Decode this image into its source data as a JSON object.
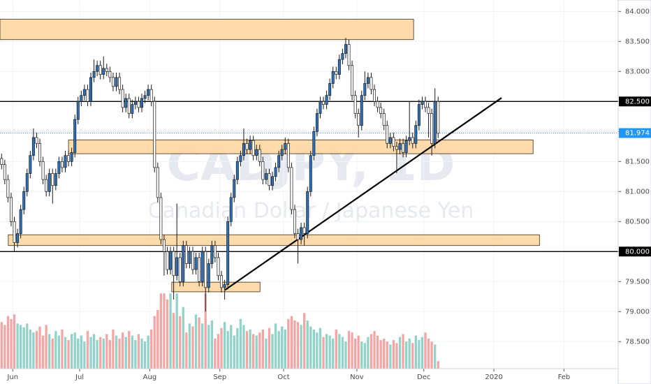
{
  "chart_data": {
    "type": "candlestick",
    "watermark_symbol": "CADJPY, 1D",
    "watermark_name": "Canadian Dollar / Japanese Yen",
    "up_color": "#2a72c0",
    "down_color": "#ffffff",
    "wick_color": "#1a1a1a",
    "volume_up_color": "#8fd3c9",
    "volume_down_color": "#f6a5a5",
    "zone_color": "#ffd59e",
    "grid": true,
    "grid_color": "#f0f3fa",
    "xlim": [
      0,
      194
    ],
    "xticks": [
      {
        "value": 4,
        "label": "Jun"
      },
      {
        "value": 25,
        "label": "Jul"
      },
      {
        "value": 47,
        "label": "Aug"
      },
      {
        "value": 69,
        "label": "Sep"
      },
      {
        "value": 89,
        "label": "Oct"
      },
      {
        "value": 112,
        "label": "Nov"
      },
      {
        "value": 133,
        "label": "Dec"
      },
      {
        "value": 155,
        "label": "2020"
      },
      {
        "value": 177,
        "label": "Feb"
      }
    ],
    "ylim": [
      78.05,
      84.19
    ],
    "yticks": [
      {
        "value": 78.5,
        "label": "78.500"
      },
      {
        "value": 79,
        "label": "79.000"
      },
      {
        "value": 79.5,
        "label": "79.500"
      },
      {
        "value": 80,
        "label": "80.000"
      },
      {
        "value": 80.5,
        "label": "80.500"
      },
      {
        "value": 81,
        "label": "81.000"
      },
      {
        "value": 81.5,
        "label": "81.500"
      },
      {
        "value": 82,
        "label": "82.000"
      },
      {
        "value": 82.5,
        "label": "82.500"
      },
      {
        "value": 83,
        "label": "83.000"
      },
      {
        "value": 83.5,
        "label": "83.500"
      },
      {
        "value": 84,
        "label": "84.000"
      }
    ],
    "volume_lim": [
      0,
      490
    ],
    "levels": [
      {
        "value": 82.5,
        "label": "82.500",
        "color": "#000000",
        "style": "solid"
      },
      {
        "value": 81.974,
        "label": "81.974",
        "color": "#2196f3",
        "style": "dotted"
      },
      {
        "value": 80,
        "label": "80.000",
        "color": "#000000",
        "style": "solid"
      }
    ],
    "zones": [
      {
        "x": [
          0,
          129.8
        ],
        "y": [
          83.53,
          83.87
        ]
      },
      {
        "x": [
          21.5,
          167.3
        ],
        "y": [
          81.63,
          81.86
        ]
      },
      {
        "x": [
          2.6,
          169.3
        ],
        "y": [
          80.1,
          80.28
        ]
      },
      {
        "x": [
          53.9,
          81.6
        ],
        "y": [
          79.33,
          79.49
        ]
      }
    ],
    "trendline": {
      "x": [
        70.6,
        157.4
      ],
      "y": [
        79.36,
        82.56
      ]
    },
    "ohlc": [
      [
        81.55,
        81.63,
        81.37,
        81.45
      ],
      [
        81.45,
        81.53,
        81.12,
        81.2
      ],
      [
        81.2,
        81.28,
        80.82,
        80.9
      ],
      [
        80.9,
        80.98,
        80.42,
        80.5
      ],
      [
        80.5,
        80.58,
        80.0,
        80.15
      ],
      [
        80.15,
        80.38,
        80.07,
        80.3
      ],
      [
        80.3,
        80.78,
        80.22,
        80.7
      ],
      [
        80.7,
        81.08,
        80.62,
        81.0
      ],
      [
        81.0,
        81.38,
        80.92,
        81.3
      ],
      [
        81.3,
        81.68,
        81.22,
        81.6
      ],
      [
        81.6,
        82.05,
        81.52,
        81.9
      ],
      [
        81.9,
        81.98,
        81.72,
        81.8
      ],
      [
        81.8,
        81.88,
        81.42,
        81.5
      ],
      [
        81.5,
        81.58,
        81.12,
        81.2
      ],
      [
        81.2,
        81.28,
        80.92,
        81.0
      ],
      [
        81.0,
        81.38,
        80.92,
        81.3
      ],
      [
        81.3,
        81.38,
        80.8,
        81.1
      ],
      [
        81.1,
        81.38,
        81.02,
        81.3
      ],
      [
        81.3,
        81.58,
        81.22,
        81.5
      ],
      [
        81.5,
        81.58,
        81.32,
        81.4
      ],
      [
        81.4,
        81.68,
        81.32,
        81.6
      ],
      [
        81.6,
        81.68,
        81.42,
        81.5
      ],
      [
        81.5,
        81.73,
        81.42,
        81.65
      ],
      [
        81.65,
        82.28,
        81.57,
        82.2
      ],
      [
        82.2,
        82.58,
        82.12,
        82.5
      ],
      [
        82.5,
        82.68,
        82.42,
        82.6
      ],
      [
        82.6,
        82.78,
        82.52,
        82.7
      ],
      [
        82.7,
        82.78,
        82.42,
        82.5
      ],
      [
        82.5,
        82.98,
        82.42,
        82.9
      ],
      [
        82.9,
        83.2,
        82.82,
        83.0
      ],
      [
        83.0,
        83.18,
        82.92,
        83.1
      ],
      [
        83.1,
        83.18,
        82.87,
        82.95
      ],
      [
        82.95,
        83.25,
        82.87,
        83.05
      ],
      [
        83.05,
        83.13,
        82.92,
        83.0
      ],
      [
        83.0,
        83.08,
        82.82,
        82.9
      ],
      [
        82.9,
        82.98,
        82.67,
        82.75
      ],
      [
        82.75,
        82.98,
        82.67,
        82.9
      ],
      [
        82.9,
        82.98,
        82.62,
        82.7
      ],
      [
        82.7,
        82.78,
        82.32,
        82.4
      ],
      [
        82.4,
        82.63,
        82.32,
        82.55
      ],
      [
        82.55,
        82.63,
        82.22,
        82.3
      ],
      [
        82.3,
        82.53,
        82.22,
        82.45
      ],
      [
        82.45,
        82.58,
        82.37,
        82.5
      ],
      [
        82.5,
        82.58,
        82.32,
        82.4
      ],
      [
        82.4,
        82.63,
        82.32,
        82.55
      ],
      [
        82.55,
        82.68,
        82.47,
        82.6
      ],
      [
        82.6,
        82.78,
        82.52,
        82.7
      ],
      [
        82.7,
        82.78,
        82.42,
        82.5
      ],
      [
        82.5,
        82.58,
        81.32,
        81.4
      ],
      [
        81.4,
        81.48,
        80.82,
        80.9
      ],
      [
        80.9,
        80.98,
        80.12,
        80.2
      ],
      [
        80.2,
        80.28,
        79.6,
        80.0
      ],
      [
        80.0,
        80.08,
        79.62,
        79.7
      ],
      [
        79.7,
        80.08,
        79.62,
        80.0
      ],
      [
        80.0,
        80.08,
        79.2,
        79.6
      ],
      [
        79.6,
        80.8,
        79.52,
        79.9
      ],
      [
        79.9,
        79.98,
        79.42,
        79.5
      ],
      [
        79.5,
        80.18,
        79.42,
        80.1
      ],
      [
        80.1,
        80.18,
        79.72,
        79.8
      ],
      [
        79.8,
        80.08,
        79.72,
        80.0
      ],
      [
        80.0,
        80.08,
        79.62,
        79.7
      ],
      [
        79.7,
        79.98,
        79.62,
        79.9
      ],
      [
        79.9,
        79.98,
        79.42,
        79.5
      ],
      [
        79.5,
        80.08,
        79.42,
        80.0
      ],
      [
        80.0,
        80.08,
        79.0,
        79.4
      ],
      [
        79.4,
        79.88,
        79.32,
        79.8
      ],
      [
        79.8,
        80.18,
        79.72,
        80.1
      ],
      [
        80.1,
        80.18,
        79.82,
        79.9
      ],
      [
        79.9,
        79.98,
        79.52,
        79.6
      ],
      [
        79.6,
        79.68,
        79.32,
        79.4
      ],
      [
        79.4,
        79.53,
        79.2,
        79.45
      ],
      [
        79.45,
        80.58,
        79.37,
        80.5
      ],
      [
        80.5,
        80.98,
        80.42,
        80.9
      ],
      [
        80.9,
        81.28,
        80.82,
        81.2
      ],
      [
        81.2,
        81.58,
        81.12,
        81.5
      ],
      [
        81.5,
        81.68,
        81.42,
        81.6
      ],
      [
        81.6,
        82.05,
        81.52,
        81.8
      ],
      [
        81.8,
        81.88,
        81.62,
        81.7
      ],
      [
        81.7,
        81.93,
        81.62,
        81.85
      ],
      [
        81.85,
        81.93,
        81.52,
        81.6
      ],
      [
        81.6,
        81.78,
        81.52,
        81.7
      ],
      [
        81.7,
        81.78,
        81.42,
        81.5
      ],
      [
        81.5,
        81.58,
        81.12,
        81.2
      ],
      [
        81.2,
        81.38,
        81.12,
        81.3
      ],
      [
        81.3,
        81.38,
        81.02,
        81.1
      ],
      [
        81.1,
        81.33,
        81.02,
        81.25
      ],
      [
        81.25,
        81.48,
        81.17,
        81.4
      ],
      [
        81.4,
        81.68,
        81.32,
        81.6
      ],
      [
        81.6,
        81.78,
        81.52,
        81.7
      ],
      [
        81.7,
        81.9,
        81.62,
        81.8
      ],
      [
        81.8,
        81.88,
        81.32,
        81.4
      ],
      [
        81.4,
        81.48,
        80.62,
        80.7
      ],
      [
        80.7,
        80.78,
        80.22,
        80.3
      ],
      [
        80.3,
        80.38,
        79.8,
        80.2
      ],
      [
        80.2,
        80.48,
        80.12,
        80.4
      ],
      [
        80.4,
        80.48,
        80.1,
        80.3
      ],
      [
        80.3,
        81.08,
        80.22,
        81.0
      ],
      [
        81.0,
        81.68,
        80.92,
        81.6
      ],
      [
        81.6,
        82.08,
        81.52,
        82.0
      ],
      [
        82.0,
        82.38,
        81.92,
        82.3
      ],
      [
        82.3,
        82.58,
        82.22,
        82.5
      ],
      [
        82.5,
        82.58,
        82.37,
        82.45
      ],
      [
        82.45,
        82.68,
        82.37,
        82.6
      ],
      [
        82.6,
        82.88,
        82.52,
        82.8
      ],
      [
        82.8,
        83.08,
        82.72,
        83.0
      ],
      [
        83.0,
        83.08,
        82.87,
        82.95
      ],
      [
        82.95,
        83.28,
        82.87,
        83.2
      ],
      [
        83.2,
        83.38,
        83.12,
        83.3
      ],
      [
        83.3,
        83.56,
        83.22,
        83.45
      ],
      [
        83.45,
        83.53,
        83.02,
        83.1
      ],
      [
        83.1,
        83.18,
        82.52,
        82.6
      ],
      [
        82.6,
        82.68,
        82.22,
        82.3
      ],
      [
        82.3,
        82.38,
        81.9,
        82.1
      ],
      [
        82.1,
        82.68,
        82.02,
        82.6
      ],
      [
        82.6,
        83.0,
        82.52,
        82.8
      ],
      [
        82.8,
        82.98,
        82.72,
        82.9
      ],
      [
        82.9,
        82.98,
        82.62,
        82.7
      ],
      [
        82.7,
        82.78,
        82.42,
        82.5
      ],
      [
        82.5,
        82.58,
        82.32,
        82.4
      ],
      [
        82.4,
        82.48,
        82.22,
        82.3
      ],
      [
        82.3,
        82.38,
        82.02,
        82.1
      ],
      [
        82.1,
        82.18,
        81.72,
        81.8
      ],
      [
        81.8,
        81.98,
        81.72,
        81.9
      ],
      [
        81.9,
        81.98,
        81.67,
        81.75
      ],
      [
        81.75,
        81.83,
        81.3,
        81.7
      ],
      [
        81.7,
        81.88,
        81.62,
        81.8
      ],
      [
        81.8,
        81.88,
        81.57,
        81.65
      ],
      [
        81.65,
        81.93,
        81.57,
        81.85
      ],
      [
        81.85,
        82.5,
        81.77,
        81.9
      ],
      [
        81.9,
        81.98,
        81.72,
        81.8
      ],
      [
        81.8,
        82.18,
        81.72,
        82.1
      ],
      [
        82.1,
        82.53,
        82.02,
        82.45
      ],
      [
        82.45,
        82.58,
        82.37,
        82.5
      ],
      [
        82.5,
        82.58,
        82.32,
        82.4
      ],
      [
        82.4,
        82.48,
        81.9,
        82.3
      ],
      [
        82.3,
        82.38,
        81.6,
        81.8
      ],
      [
        81.8,
        82.72,
        81.72,
        82.5
      ],
      [
        82.5,
        82.58,
        81.89,
        81.97
      ]
    ],
    "volume": [
      62,
      58,
      70,
      66,
      72,
      60,
      58,
      55,
      60,
      52,
      48,
      50,
      56,
      44,
      58,
      46,
      40,
      50,
      44,
      52,
      42,
      38,
      46,
      48,
      40,
      44,
      36,
      50,
      42,
      46,
      38,
      42,
      40,
      46,
      38,
      52,
      44,
      40,
      48,
      42,
      50,
      44,
      38,
      46,
      40,
      36,
      44,
      52,
      70,
      78,
      100,
      100,
      92,
      100,
      74,
      100,
      70,
      82,
      48,
      60,
      56,
      72,
      68,
      60,
      100,
      58,
      64,
      40,
      46,
      54,
      62,
      50,
      58,
      44,
      54,
      66,
      58,
      50,
      52,
      46,
      44,
      48,
      52,
      40,
      54,
      46,
      60,
      50,
      56,
      52,
      66,
      70,
      64,
      62,
      58,
      74,
      64,
      56,
      52,
      48,
      54,
      42,
      46,
      44,
      40,
      52,
      46,
      42,
      36,
      50,
      48,
      40,
      44,
      36,
      34,
      42,
      46,
      50,
      44,
      38,
      40,
      36,
      32,
      38,
      34,
      42,
      46,
      36,
      40,
      34,
      44,
      38,
      42,
      48,
      40,
      36,
      32,
      10
    ]
  }
}
